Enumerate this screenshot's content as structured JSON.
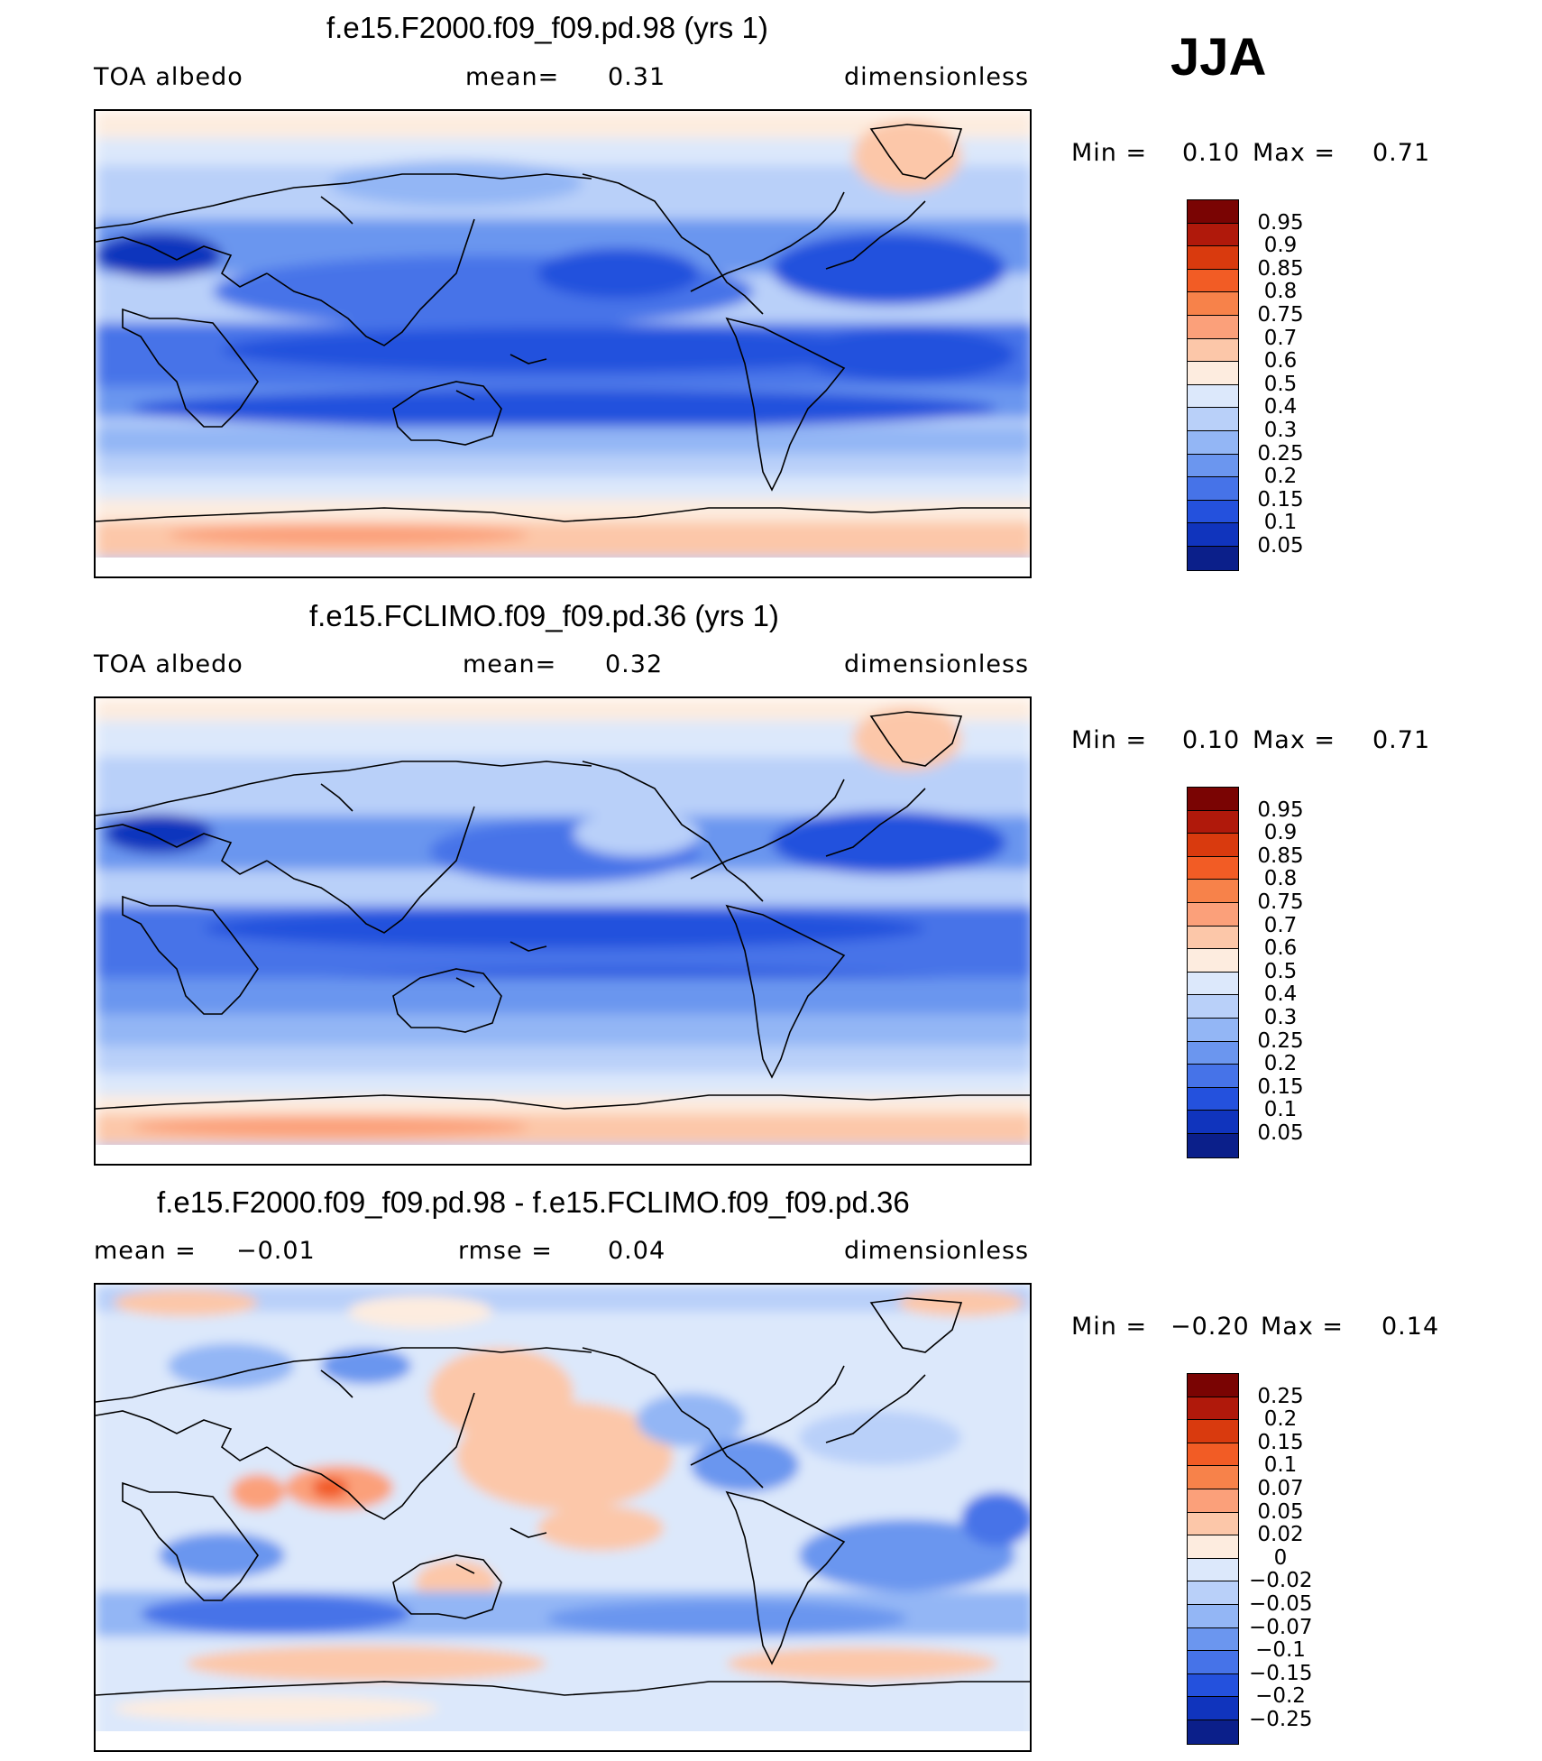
{
  "season": "JJA",
  "panels": [
    {
      "title": "f.e15.F2000.f09_f09.pd.98 (yrs 1)",
      "left_label": "TOA albedo",
      "center_label": "mean=",
      "center_value": "0.31",
      "right_label": "dimensionless",
      "min_label": "Min =",
      "min_value": "0.10",
      "max_label": "Max =",
      "max_value": "0.71",
      "colorbar_labels": [
        "0.95",
        "0.9",
        "0.85",
        "0.8",
        "0.75",
        "0.7",
        "0.6",
        "0.5",
        "0.4",
        "0.3",
        "0.25",
        "0.2",
        "0.15",
        "0.1",
        "0.05"
      ],
      "colorbar_colors": [
        "#7a0403",
        "#b0190b",
        "#d93a0e",
        "#f25c25",
        "#f7824a",
        "#fba07a",
        "#fcc7a9",
        "#fdecdf",
        "#dce8fb",
        "#b9d0f9",
        "#93b6f5",
        "#6b96ef",
        "#4673e8",
        "#2451dd",
        "#1034bd",
        "#0b1f8a"
      ]
    },
    {
      "title": "f.e15.FCLIMO.f09_f09.pd.36 (yrs 1)",
      "left_label": "TOA albedo",
      "center_label": "mean=",
      "center_value": "0.32",
      "right_label": "dimensionless",
      "min_label": "Min =",
      "min_value": "0.10",
      "max_label": "Max =",
      "max_value": "0.71",
      "colorbar_labels": [
        "0.95",
        "0.9",
        "0.85",
        "0.8",
        "0.75",
        "0.7",
        "0.6",
        "0.5",
        "0.4",
        "0.3",
        "0.25",
        "0.2",
        "0.15",
        "0.1",
        "0.05"
      ],
      "colorbar_colors": [
        "#7a0403",
        "#b0190b",
        "#d93a0e",
        "#f25c25",
        "#f7824a",
        "#fba07a",
        "#fcc7a9",
        "#fdecdf",
        "#dce8fb",
        "#b9d0f9",
        "#93b6f5",
        "#6b96ef",
        "#4673e8",
        "#2451dd",
        "#1034bd",
        "#0b1f8a"
      ]
    },
    {
      "title": "f.e15.F2000.f09_f09.pd.98 - f.e15.FCLIMO.f09_f09.pd.36",
      "left_label": "mean =",
      "left_value": "−0.01",
      "center_label": "rmse =",
      "center_value": "0.04",
      "right_label": "dimensionless",
      "min_label": "Min =",
      "min_value": "−0.20",
      "max_label": "Max =",
      "max_value": "0.14",
      "colorbar_labels": [
        "0.25",
        "0.2",
        "0.15",
        "0.1",
        "0.07",
        "0.05",
        "0.02",
        "0",
        "−0.02",
        "−0.05",
        "−0.07",
        "−0.1",
        "−0.15",
        "−0.2",
        "−0.25"
      ],
      "colorbar_colors": [
        "#7a0403",
        "#b0190b",
        "#d93a0e",
        "#f25c25",
        "#f7824a",
        "#fba07a",
        "#fcc7a9",
        "#fdecdf",
        "#dce8fb",
        "#b9d0f9",
        "#93b6f5",
        "#6b96ef",
        "#4673e8",
        "#2451dd",
        "#1034bd",
        "#0b1f8a"
      ]
    }
  ]
}
